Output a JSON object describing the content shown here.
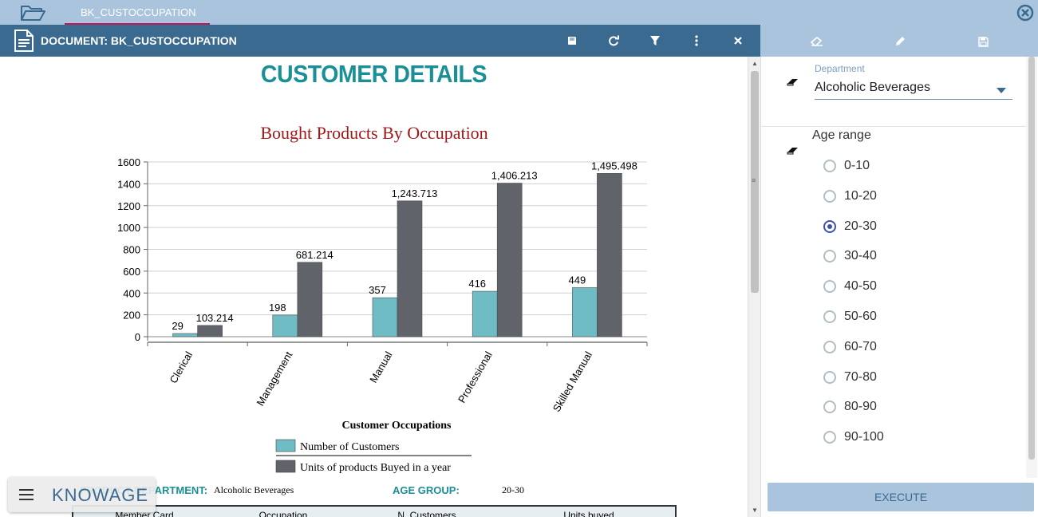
{
  "tab": {
    "label": "BK_CUSTOCCUPATION"
  },
  "document": {
    "title": "DOCUMENT: BK_CUSTOCCUPATION"
  },
  "report": {
    "title": "CUSTOMER DETAILS",
    "info": {
      "department_label": "PRODUCT DEPARTMENT:",
      "department_value": "Alcoholic Beverages",
      "age_label": "AGE GROUP:",
      "age_value": "20-30"
    },
    "table_headers": [
      "Member Card",
      "Occupation",
      "N. Customers",
      "Units buyed"
    ]
  },
  "chart_data": {
    "type": "bar",
    "title": "Bought Products By Occupation",
    "xlabel": "Customer Occupations",
    "ylabel": "",
    "categories": [
      "Clerical",
      "Management",
      "Manual",
      "Professional",
      "Skilled Manual"
    ],
    "series": [
      {
        "name": "Number of Customers",
        "values": [
          29,
          198,
          357,
          416,
          449
        ],
        "labels": [
          "29",
          "198",
          "357",
          "416",
          "449"
        ],
        "color": "#70bcc4"
      },
      {
        "name": "Units of products Buyed in a year",
        "values": [
          103.214,
          681.214,
          1243.713,
          1406.213,
          1495.498
        ],
        "labels": [
          "103.214",
          "681.214",
          "1,243.713",
          "1,406.213",
          "1,495.498"
        ],
        "color": "#606369"
      }
    ],
    "ylim": [
      0,
      1600
    ],
    "yticks": [
      0,
      200,
      400,
      600,
      800,
      1000,
      1200,
      1400,
      1600
    ],
    "grid": true,
    "legend_position": "bottom"
  },
  "filters": {
    "department": {
      "label": "Department",
      "value": "Alcoholic Beverages"
    },
    "age_range": {
      "label": "Age range",
      "options": [
        "0-10",
        "10-20",
        "20-30",
        "30-40",
        "40-50",
        "50-60",
        "60-70",
        "70-80",
        "80-90",
        "90-100"
      ],
      "selected": "20-30"
    },
    "execute_label": "EXECUTE"
  },
  "branding": {
    "logo": "KNOWAGE"
  },
  "colors": {
    "header": "#3b6a91",
    "topbar": "#a9c4dc",
    "accent": "#1a8f96",
    "chart_title": "#a01818",
    "tab_underline": "#c2185b"
  }
}
